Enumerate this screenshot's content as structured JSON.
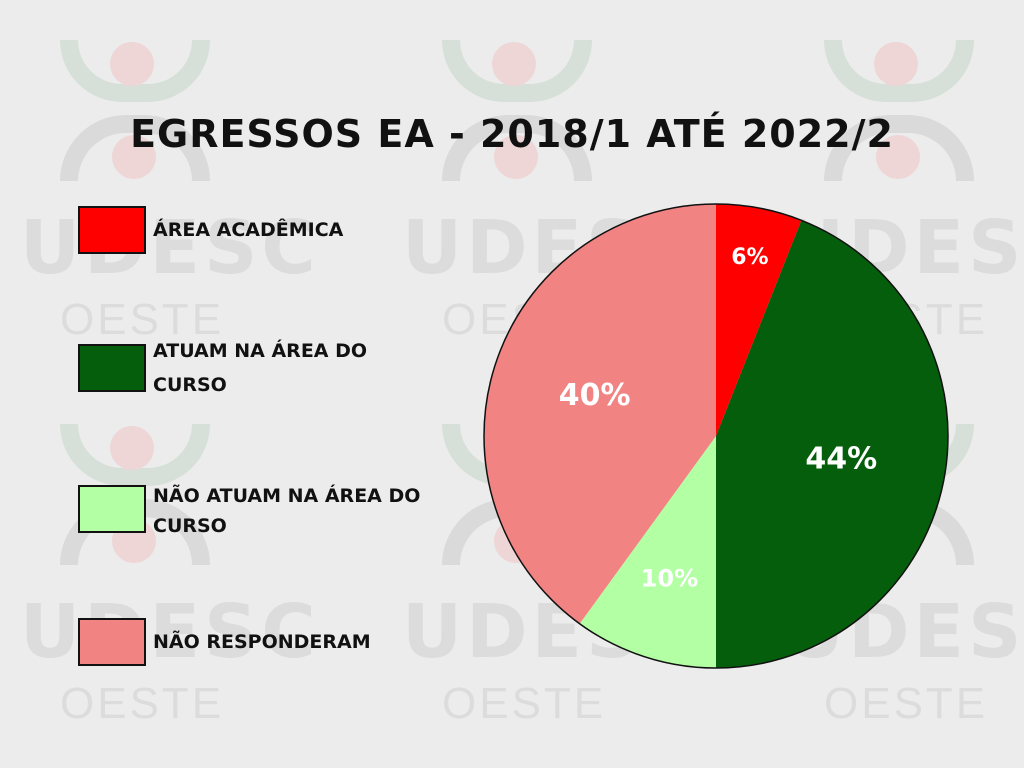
{
  "watermark": {
    "word1": "UDESC",
    "word2": "OESTE"
  },
  "chart_data": {
    "type": "pie",
    "title": "EGRESSOS EA - 2018/1 ATÉ 2022/2",
    "legend_position": "left",
    "slices": [
      {
        "label": "ÁREA ACADÊMICA",
        "value": 6,
        "display": "6%",
        "color": "#ff0000"
      },
      {
        "label": "ATUAM NA ÁREA DO CURSO",
        "value": 44,
        "display": "44%",
        "color": "#055e0b"
      },
      {
        "label": "NÃO ATUAM NA ÁREA DO CURSO",
        "value": 10,
        "display": "10%",
        "color": "#b2ffa4"
      },
      {
        "label": "NÃO RESPONDERAM",
        "value": 40,
        "display": "40%",
        "color": "#f28383"
      }
    ]
  }
}
